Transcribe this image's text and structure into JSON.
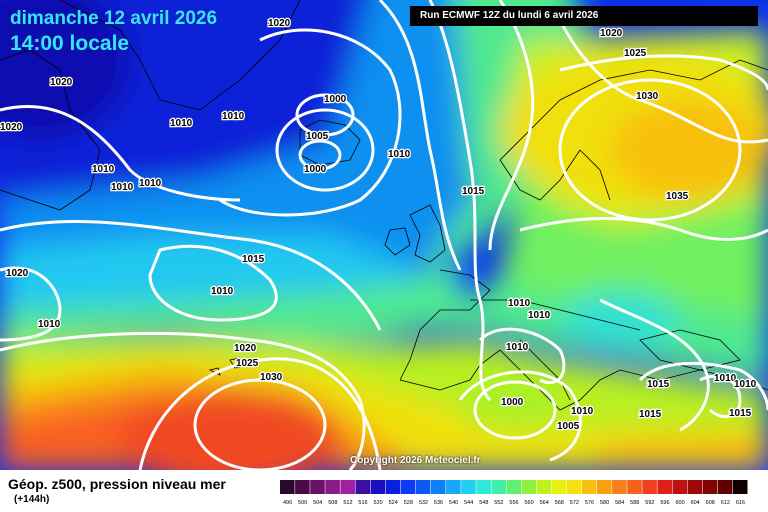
{
  "title": {
    "date": "dimanche 12 avril 2026",
    "time": "14:00 locale"
  },
  "run_info": "Run ECMWF 12Z du lundi 6 avril 2026",
  "copyright": "Copyright 2026 Meteociel.fr",
  "footer": {
    "field_label": "Géop. z500, pression niveau mer",
    "lead_time": "(+144h)"
  },
  "scale": {
    "values": [
      "496",
      "500",
      "504",
      "508",
      "512",
      "516",
      "520",
      "524",
      "528",
      "532",
      "536",
      "540",
      "544",
      "548",
      "552",
      "556",
      "560",
      "564",
      "568",
      "572",
      "576",
      "580",
      "584",
      "588",
      "592",
      "596",
      "600",
      "604",
      "608",
      "612",
      "616"
    ],
    "colors": [
      "#2a0a2a",
      "#4a0a4a",
      "#6a126a",
      "#8a1a8a",
      "#a020a0",
      "#3a10a0",
      "#1a10c0",
      "#0a20e0",
      "#0a3cf5",
      "#0a5af8",
      "#1080f8",
      "#18a8f8",
      "#20d0f0",
      "#30e8d8",
      "#40f0a8",
      "#60f070",
      "#90f040",
      "#c0f020",
      "#e8f010",
      "#f8e010",
      "#f8c010",
      "#f8a010",
      "#f88018",
      "#f86020",
      "#f04020",
      "#e02018",
      "#c01010",
      "#a00808",
      "#800404",
      "#600000",
      "#100000"
    ]
  },
  "pressure_labels": [
    {
      "text": "1020",
      "name": "isobar-label-1020-greenland-north"
    },
    {
      "text": "1020",
      "name": "isobar-label-1020-greenland-west"
    },
    {
      "text": "1020",
      "name": "isobar-label-1020-west-edge"
    },
    {
      "text": "1010",
      "name": "isobar-label-1010-iceland-west"
    },
    {
      "text": "1010",
      "name": "isobar-label-1010-iceland-mid"
    },
    {
      "text": "1000",
      "name": "isobar-label-1000-low-north"
    },
    {
      "text": "1005",
      "name": "isobar-label-1005-low"
    },
    {
      "text": "1000",
      "name": "isobar-label-1000-low-south"
    },
    {
      "text": "1010",
      "name": "isobar-label-1010-greenland-coast-a"
    },
    {
      "text": "1010",
      "name": "isobar-label-1010-greenland-coast-b"
    },
    {
      "text": "1010",
      "name": "isobar-label-1010-greenland-coast-c"
    },
    {
      "text": "1010",
      "name": "isobar-label-1010-north-sea"
    },
    {
      "text": "1015",
      "name": "isobar-label-1015-north-sea"
    },
    {
      "text": "1020",
      "name": "isobar-label-1020-scandinavia"
    },
    {
      "text": "1025",
      "name": "isobar-label-1025-scandinavia"
    },
    {
      "text": "1030",
      "name": "isobar-label-1030-finland"
    },
    {
      "text": "1035",
      "name": "isobar-label-1035-russia"
    },
    {
      "text": "1015",
      "name": "isobar-label-1015-atlantic"
    },
    {
      "text": "1020",
      "name": "isobar-label-1020-west-atlantic"
    },
    {
      "text": "1010",
      "name": "isobar-label-1010-west-atlantic"
    },
    {
      "text": "1010",
      "name": "isobar-label-1010-atlantic-mid"
    },
    {
      "text": "1020",
      "name": "isobar-label-1020-azores"
    },
    {
      "text": "1025",
      "name": "isobar-label-1025-azores"
    },
    {
      "text": "1030",
      "name": "isobar-label-1030-azores"
    },
    {
      "text": "1010",
      "name": "isobar-label-1010-central-europe"
    },
    {
      "text": "1010",
      "name": "isobar-label-1010-central-europe-east"
    },
    {
      "text": "1010",
      "name": "isobar-label-1010-alps"
    },
    {
      "text": "1000",
      "name": "isobar-label-1000-mediterranean-low"
    },
    {
      "text": "1005",
      "name": "isobar-label-1005-mediterranean"
    },
    {
      "text": "1010",
      "name": "isobar-label-1010-italy"
    },
    {
      "text": "1015",
      "name": "isobar-label-1015-greece"
    },
    {
      "text": "1015",
      "name": "isobar-label-1015-aegean"
    },
    {
      "text": "1010",
      "name": "isobar-label-1010-turkey"
    },
    {
      "text": "1010",
      "name": "isobar-label-1010-black-sea"
    },
    {
      "text": "1015",
      "name": "isobar-label-1015-turkey-east"
    }
  ]
}
